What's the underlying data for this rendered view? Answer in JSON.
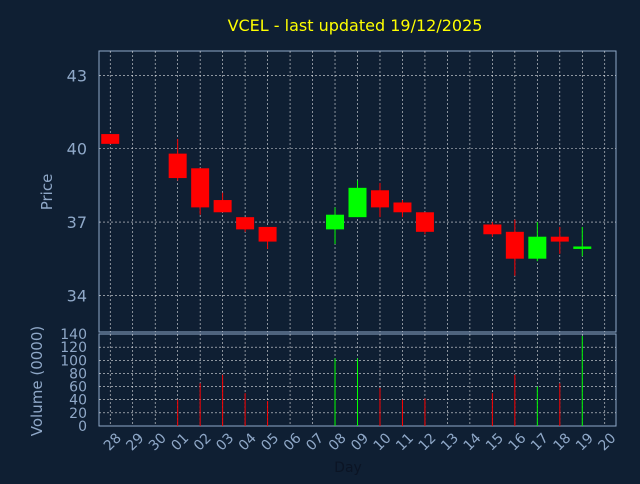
{
  "chart_data": {
    "type": "candlestick",
    "title": "VCEL - last updated 19/12/2025",
    "price_panel": {
      "ylabel": "Price",
      "yticks": [
        34,
        37,
        40,
        43
      ],
      "ylim": [
        32.5,
        44
      ]
    },
    "volume_panel": {
      "ylabel": "Volume (0000)",
      "yticks": [
        0,
        20,
        40,
        60,
        80,
        100,
        120,
        140
      ],
      "ylim": [
        0,
        140
      ]
    },
    "xlabel": "Day",
    "x_ticks": [
      "28",
      "29",
      "30",
      "01",
      "02",
      "03",
      "04",
      "05",
      "06",
      "07",
      "08",
      "09",
      "10",
      "11",
      "12",
      "13",
      "14",
      "15",
      "16",
      "17",
      "18",
      "19",
      "20"
    ],
    "candles": [
      {
        "day": "28",
        "open": 40.6,
        "high": 40.6,
        "low": 40.2,
        "close": 40.2,
        "volume": 0
      },
      {
        "day": "01",
        "open": 39.8,
        "high": 40.4,
        "low": 38.7,
        "close": 38.8,
        "volume": 40
      },
      {
        "day": "02",
        "open": 39.2,
        "high": 39.2,
        "low": 37.3,
        "close": 37.6,
        "volume": 65
      },
      {
        "day": "03",
        "open": 37.9,
        "high": 38.2,
        "low": 37.4,
        "close": 37.4,
        "volume": 78
      },
      {
        "day": "04",
        "open": 37.2,
        "high": 37.2,
        "low": 36.6,
        "close": 36.7,
        "volume": 50
      },
      {
        "day": "05",
        "open": 36.8,
        "high": 36.8,
        "low": 35.9,
        "close": 36.2,
        "volume": 38
      },
      {
        "day": "08",
        "open": 36.7,
        "high": 37.6,
        "low": 36.1,
        "close": 37.3,
        "volume": 103
      },
      {
        "day": "09",
        "open": 37.2,
        "high": 38.7,
        "low": 37.2,
        "close": 38.4,
        "volume": 103
      },
      {
        "day": "10",
        "open": 38.3,
        "high": 38.6,
        "low": 37.2,
        "close": 37.6,
        "volume": 58
      },
      {
        "day": "11",
        "open": 37.8,
        "high": 37.9,
        "low": 37.2,
        "close": 37.4,
        "volume": 40
      },
      {
        "day": "12",
        "open": 37.4,
        "high": 37.4,
        "low": 36.5,
        "close": 36.6,
        "volume": 42
      },
      {
        "day": "15",
        "open": 36.9,
        "high": 37.0,
        "low": 36.4,
        "close": 36.5,
        "volume": 50
      },
      {
        "day": "16",
        "open": 36.6,
        "high": 37.1,
        "low": 34.8,
        "close": 35.5,
        "volume": 78
      },
      {
        "day": "17",
        "open": 35.5,
        "high": 37.0,
        "low": 35.4,
        "close": 36.4,
        "volume": 60
      },
      {
        "day": "18",
        "open": 36.4,
        "high": 36.8,
        "low": 35.7,
        "close": 36.2,
        "volume": 65
      },
      {
        "day": "19",
        "open": 35.9,
        "high": 36.8,
        "low": 35.6,
        "close": 36.0,
        "volume": 137
      }
    ],
    "grid": true,
    "colors": {
      "background": "#0f1f33",
      "plot_background": "#0f1f33",
      "title": "#ffff00",
      "axis_text": "#8fa8c8",
      "grid": "#ffffff",
      "up": "#00ff00",
      "down": "#ff0000"
    }
  }
}
